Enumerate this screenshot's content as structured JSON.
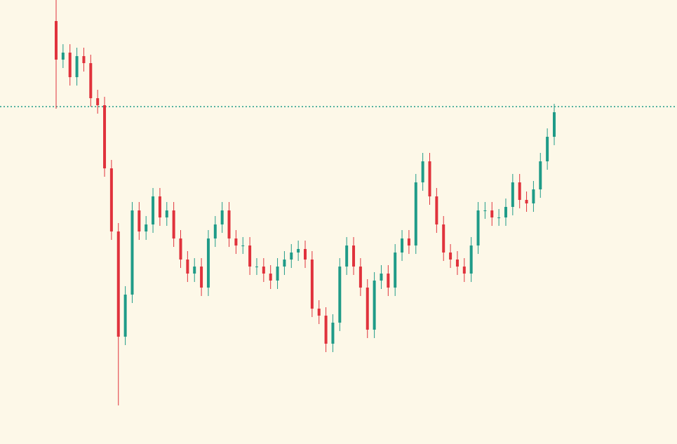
{
  "chart_data": {
    "type": "candlestick",
    "open": [
      603,
      548,
      558,
      523,
      553,
      543,
      493,
      483,
      393,
      303,
      153,
      213,
      333,
      303,
      313,
      353,
      323,
      333,
      293,
      263,
      243,
      253,
      223,
      293,
      313,
      333,
      293,
      283,
      283,
      253,
      253,
      243,
      233,
      253,
      263,
      273,
      278,
      263,
      193,
      183,
      143,
      173,
      253,
      283,
      253,
      223,
      163,
      233,
      243,
      223,
      273,
      293,
      283,
      373,
      403,
      353,
      313,
      273,
      263,
      253,
      243,
      283,
      333,
      333,
      323,
      323,
      338,
      373,
      348,
      343,
      363,
      403,
      438
    ],
    "high": [
      633,
      570,
      570,
      565,
      565,
      555,
      505,
      495,
      405,
      315,
      225,
      345,
      345,
      325,
      365,
      365,
      345,
      345,
      305,
      275,
      265,
      265,
      305,
      325,
      345,
      345,
      305,
      295,
      295,
      265,
      265,
      255,
      265,
      275,
      285,
      290,
      290,
      275,
      205,
      195,
      185,
      265,
      295,
      295,
      265,
      235,
      245,
      255,
      255,
      285,
      305,
      305,
      385,
      415,
      415,
      365,
      325,
      285,
      275,
      265,
      295,
      345,
      345,
      345,
      335,
      350,
      385,
      385,
      360,
      375,
      415,
      450,
      485
    ],
    "low": [
      478,
      536,
      511,
      511,
      531,
      481,
      471,
      381,
      291,
      55,
      141,
      201,
      291,
      291,
      301,
      311,
      311,
      281,
      251,
      231,
      231,
      211,
      211,
      281,
      301,
      281,
      271,
      271,
      241,
      241,
      231,
      221,
      221,
      241,
      251,
      261,
      251,
      181,
      171,
      131,
      131,
      161,
      241,
      241,
      211,
      151,
      151,
      221,
      211,
      211,
      261,
      271,
      271,
      361,
      341,
      301,
      261,
      251,
      241,
      231,
      231,
      271,
      321,
      311,
      311,
      311,
      326,
      336,
      331,
      331,
      351,
      391,
      426
    ],
    "close": [
      548,
      558,
      523,
      553,
      543,
      493,
      483,
      393,
      303,
      153,
      213,
      333,
      303,
      313,
      353,
      323,
      333,
      293,
      263,
      243,
      253,
      223,
      293,
      313,
      333,
      293,
      283,
      283,
      253,
      253,
      243,
      233,
      253,
      263,
      273,
      278,
      263,
      193,
      183,
      143,
      173,
      253,
      283,
      253,
      223,
      163,
      233,
      243,
      223,
      273,
      293,
      283,
      373,
      403,
      353,
      313,
      273,
      263,
      253,
      243,
      283,
      333,
      333,
      323,
      323,
      338,
      373,
      348,
      343,
      363,
      403,
      438,
      473
    ],
    "up_color": "#1f9b88",
    "down_color": "#e0323c",
    "ylim": [
      0,
      633
    ],
    "price_line": 481,
    "price_line_color": "#1f9b88"
  }
}
